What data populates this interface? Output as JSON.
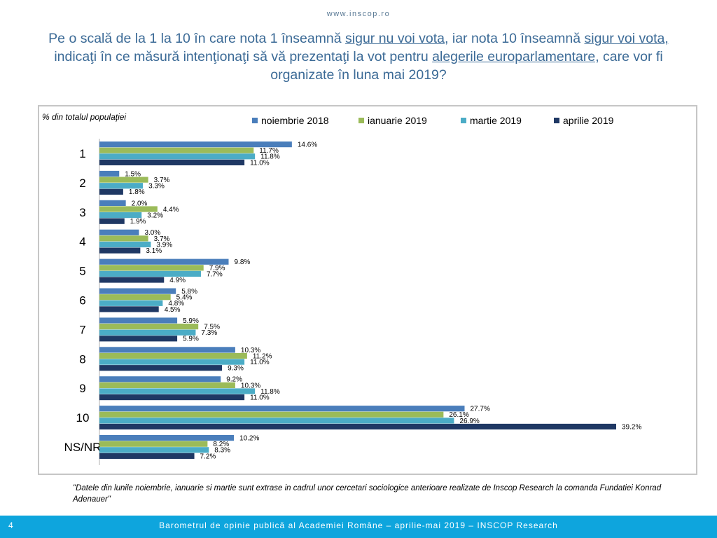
{
  "header": {
    "site_url": "www.inscop.ro",
    "question_parts": [
      {
        "text": "Pe o scală de la 1 la 10 în care nota 1 înseamnă ",
        "u": false
      },
      {
        "text": "sigur nu voi vota",
        "u": true
      },
      {
        "text": ", iar nota 10 înseamnă ",
        "u": false
      },
      {
        "text": "sigur voi vota,",
        "u": true
      },
      {
        "text": " indicaţi în ce măsură intenţionaţi să vă prezentaţi la vot pentru ",
        "u": false
      },
      {
        "text": "alegerile europarlamentare,",
        "u": true
      },
      {
        "text": " care vor fi organizate în luna mai 2019?",
        "u": false
      }
    ]
  },
  "chart_data": {
    "type": "bar",
    "orientation": "horizontal",
    "ylabel": "% din totalul populaţiei",
    "categories": [
      "1",
      "2",
      "3",
      "4",
      "5",
      "6",
      "7",
      "8",
      "9",
      "10",
      "NS/NR"
    ],
    "series": [
      {
        "name": "noiembrie 2018",
        "color": "#4a7ebb",
        "values": [
          14.6,
          1.5,
          2.0,
          3.0,
          9.8,
          5.8,
          5.9,
          10.3,
          9.2,
          27.7,
          10.2
        ]
      },
      {
        "name": "ianuarie 2019",
        "color": "#9bbb59",
        "values": [
          11.7,
          3.7,
          4.4,
          3.7,
          7.9,
          5.4,
          7.5,
          11.2,
          10.3,
          26.1,
          8.2
        ]
      },
      {
        "name": "martie 2019",
        "color": "#4bacc6",
        "values": [
          11.8,
          3.3,
          3.2,
          3.9,
          7.7,
          4.8,
          7.3,
          11.0,
          11.8,
          26.9,
          8.3
        ]
      },
      {
        "name": "aprilie 2019",
        "color": "#1f3864",
        "values": [
          11.0,
          1.8,
          1.9,
          3.1,
          4.9,
          4.5,
          5.9,
          9.3,
          11.0,
          39.2,
          7.2
        ]
      }
    ],
    "value_suffix": "%",
    "xlim": [
      0,
      45
    ],
    "grid": false,
    "legend_position": "top"
  },
  "footnote": "\"Datele din lunile noiembrie, ianuarie si martie sunt extrase in cadrul unor cercetari sociologice anterioare realizate de Inscop Research la comanda Fundatiei Konrad Adenauer\"",
  "footer": {
    "page_number": "4",
    "text": "Barometrul de opinie publică al Academiei Române – aprilie-mai 2019 – INSCOP Research",
    "color": "#0ea5dd"
  }
}
